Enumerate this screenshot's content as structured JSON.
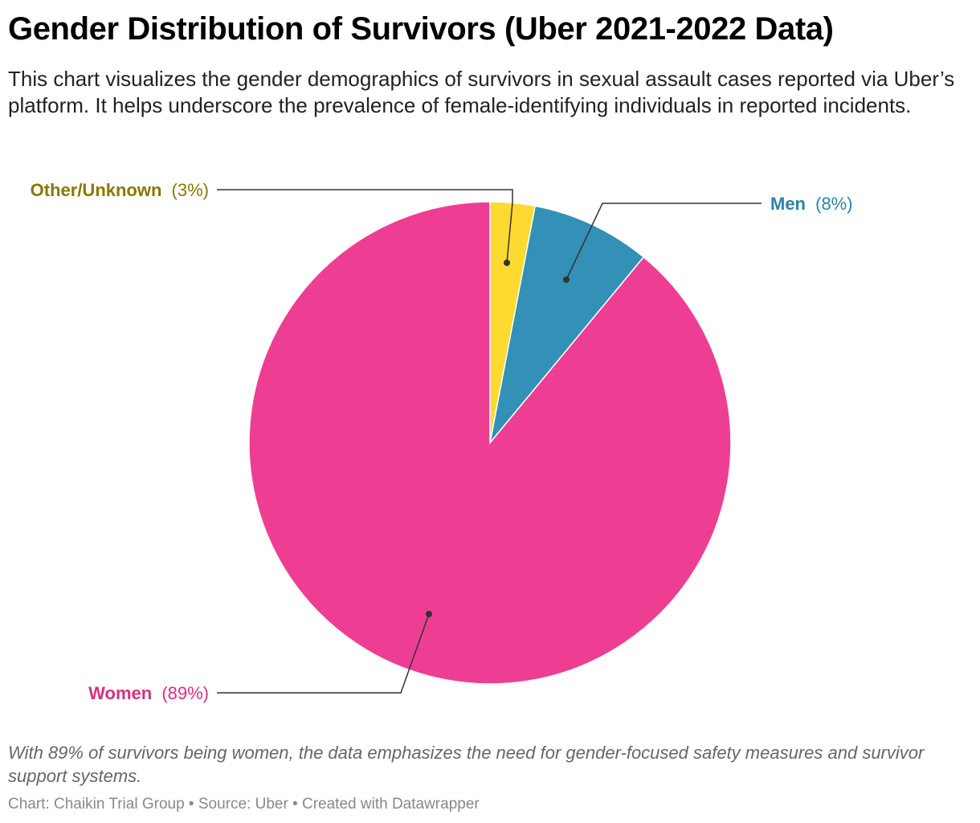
{
  "chart_data": {
    "type": "pie",
    "title": "Gender Distribution of Survivors (Uber 2021-2022 Data)",
    "description": "This chart visualizes the gender demographics of survivors in sexual assault cases reported via Uber’s platform. It helps underscore the prevalence of female-identifying individuals in reported incidents.",
    "slices": [
      {
        "name": "Other/Unknown",
        "value": 3,
        "value_label": "(3%)",
        "color": "#FDDA2F",
        "label_color": "#8A7700"
      },
      {
        "name": "Men",
        "value": 8,
        "value_label": "(8%)",
        "color": "#3390B6",
        "label_color": "#2A84A3"
      },
      {
        "name": "Women",
        "value": 89,
        "value_label": "(89%)",
        "color": "#EE3E93",
        "label_color": "#D92F82"
      }
    ],
    "note": "With 89% of survivors being women, the data emphasizes the need for gender-focused safety measures and survivor support systems.",
    "credit": "Chart: Chaikin Trial Group • Source: Uber • Created with Datawrapper"
  }
}
